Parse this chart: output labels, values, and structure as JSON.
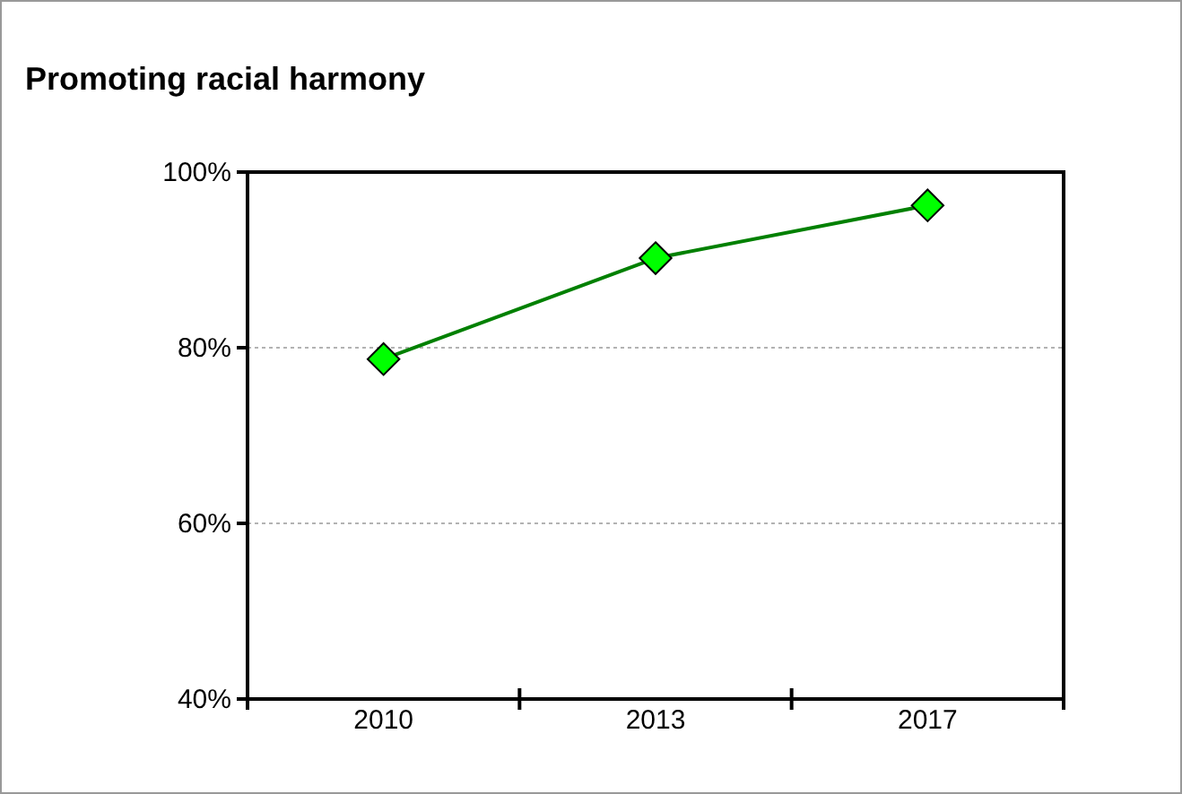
{
  "chart_data": {
    "type": "line",
    "title": "Promoting racial harmony",
    "categories": [
      "2010",
      "2013",
      "2017"
    ],
    "series": [
      {
        "color": "#008000",
        "values": [
          78.7,
          90.2,
          96.2
        ]
      }
    ],
    "ylim": [
      40,
      100
    ],
    "yticks": [
      {
        "value": 40,
        "label": "40%"
      },
      {
        "value": 60,
        "label": "60%"
      },
      {
        "value": 80,
        "label": "80%"
      },
      {
        "value": 100,
        "label": "100%"
      }
    ],
    "grid": "y",
    "marker": "diamond",
    "line_style": "solid"
  }
}
